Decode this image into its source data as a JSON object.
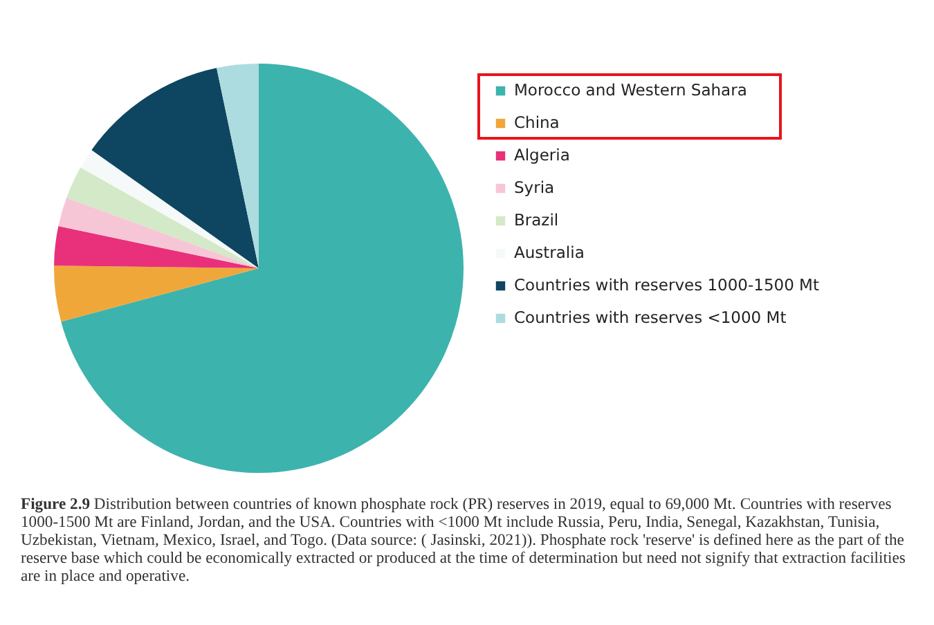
{
  "chart_data": {
    "type": "pie",
    "categories": [
      "Morocco and Western Sahara",
      "China",
      "Algeria",
      "Syria",
      "Brazil",
      "Australia",
      "Countries with reserves 1000-1500 Mt",
      "Countries with reserves <1000 Mt"
    ],
    "values": [
      70.8,
      4.4,
      3.1,
      2.3,
      2.6,
      1.6,
      11.9,
      3.3
    ],
    "colors": [
      "#3db3ad",
      "#f0a73a",
      "#e8317a",
      "#f7c6d6",
      "#d3e9c8",
      "#f6f9f9",
      "#0e4561",
      "#acdcdf"
    ],
    "legend": "right",
    "annotations": [
      "Figure 2.9 Distribution between countries of known phosphate rock (PR) reserves in 2019, equal to 69,000 Mt. Countries with reserves 1000-1500 Mt are Finland, Jordan, and the USA. Countries with <1000 Mt include Russia, Peru, India, Senegal, Kazakhstan, Tunisia, Uzbekistan, Vietnam, Mexico, Israel, and Togo. (Data source: ( Jasinski, 2021)). Phosphate rock 'reserve' is defined here as the part of the reserve base which could be economically extracted or produced at the time of determination but need not signify that extraction facilities are in place and operative."
    ]
  }
}
